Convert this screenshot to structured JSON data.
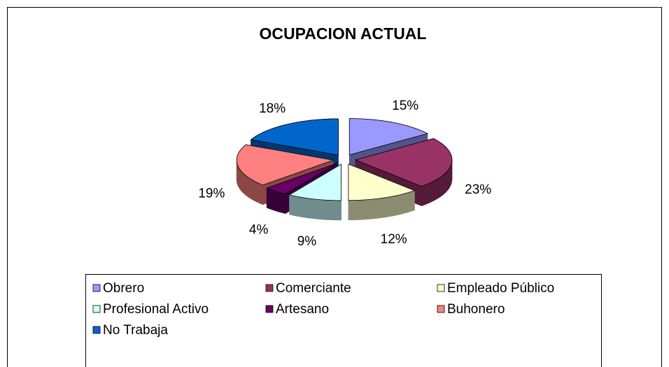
{
  "chart_data": {
    "type": "pie",
    "title": "OCUPACION ACTUAL",
    "categories": [
      "Obrero",
      "Comerciante",
      "Empleado Público",
      "Profesional Activo",
      "Artesano",
      "Buhonero",
      "No Trabaja"
    ],
    "values": [
      15,
      23,
      12,
      9,
      4,
      19,
      18
    ],
    "value_labels": [
      "15%",
      "23%",
      "12%",
      "9%",
      "4%",
      "19%",
      "18%"
    ],
    "colors": [
      "#9999ff",
      "#993366",
      "#ffffcc",
      "#ccffff",
      "#660066",
      "#ff8080",
      "#0066cc"
    ],
    "legend": "bottom"
  }
}
